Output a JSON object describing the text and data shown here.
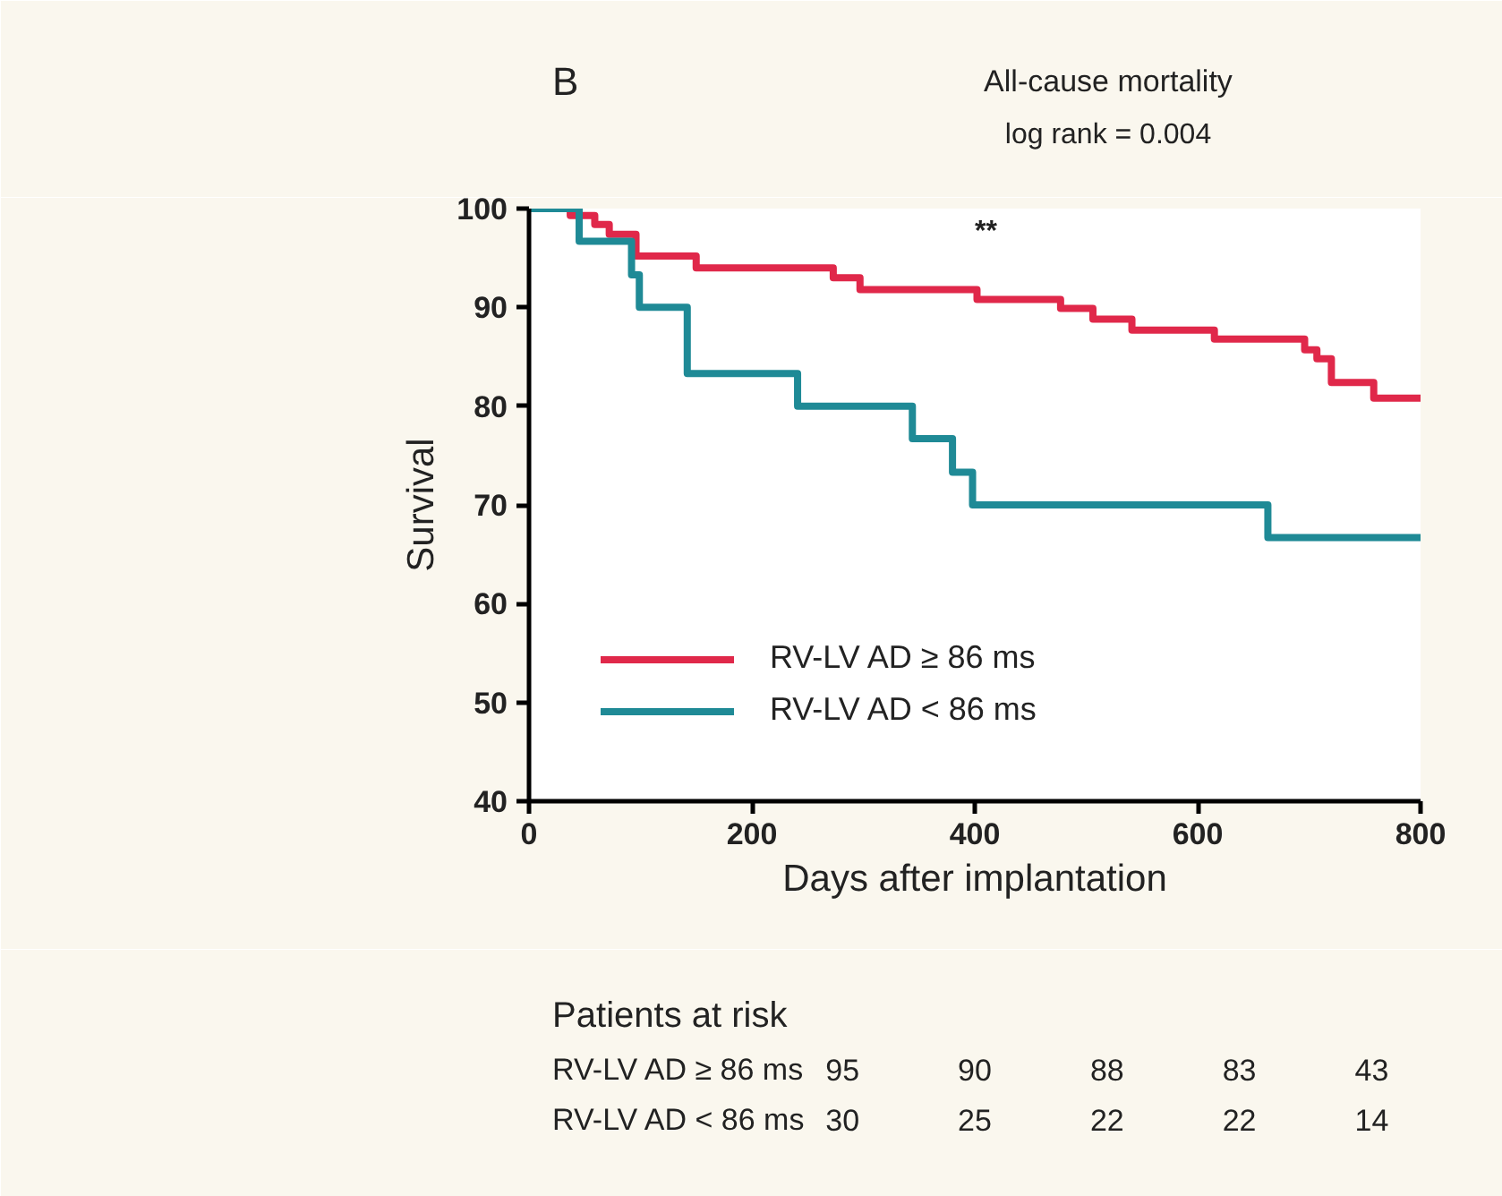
{
  "chart_data": {
    "type": "step",
    "title": "All-cause mortality",
    "subtitle": "log rank = 0.004",
    "xlabel": "Days after implantation",
    "ylabel": "Survival",
    "xlim": [
      0,
      800
    ],
    "xticks": [
      0,
      200,
      400,
      600,
      800
    ],
    "ylim": [
      40,
      100
    ],
    "yticks": [
      40,
      50,
      60,
      70,
      80,
      90,
      100
    ],
    "grid": false,
    "legend": "bottom left",
    "line_style": "solid",
    "marker": "none",
    "series": [
      {
        "name": "RV-LV AD ≥ 86 ms",
        "color": "#e0284a",
        "x": [
          0,
          37,
          59,
          72,
          96,
          150,
          273,
          297,
          402,
          477,
          506,
          541,
          615,
          696,
          707,
          720,
          758,
          800
        ],
        "values": [
          100,
          99.3,
          98.4,
          97.4,
          95.2,
          94,
          93,
          91.8,
          90.8,
          89.9,
          88.8,
          87.7,
          86.8,
          85.7,
          84.8,
          82.4,
          80.8,
          80.8
        ]
      },
      {
        "name": "RV-LV AD < 86 ms",
        "color": "#1f8a96",
        "x": [
          0,
          45,
          92,
          99,
          142,
          241,
          344,
          380,
          398,
          663,
          800
        ],
        "values": [
          100,
          96.7,
          93.3,
          90,
          83.3,
          80,
          76.7,
          73.3,
          70,
          66.7,
          66.7
        ]
      }
    ],
    "annotations": [
      "B",
      "**",
      "Patients at risk",
      "RV-LV AD ≥ 86 ms",
      "95",
      "90",
      "88",
      "83",
      "43",
      "RV-LV AD < 86 ms",
      "30",
      "25",
      "22",
      "22",
      "14"
    ]
  }
}
